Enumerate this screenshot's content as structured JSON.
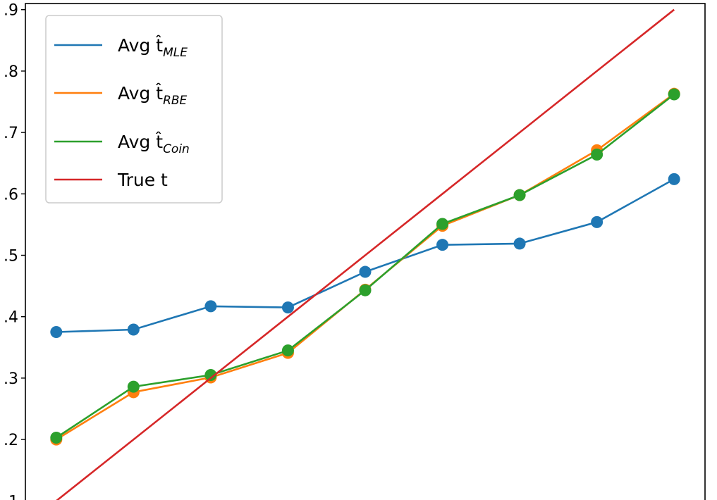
{
  "chart_data": {
    "type": "line",
    "title": "",
    "xlabel": "",
    "ylabel": "",
    "ylim": [
      0.09,
      0.91
    ],
    "yticks": [
      0.1,
      0.2,
      0.3,
      0.4,
      0.5,
      0.6,
      0.7,
      0.8,
      0.9
    ],
    "ytick_labels": [
      ".1",
      ".2",
      ".3",
      ".4",
      ".5",
      ".6",
      ".7",
      ".8",
      ".9"
    ],
    "x": [
      0.1,
      0.2,
      0.3,
      0.4,
      0.5,
      0.6,
      0.7,
      0.8,
      0.9
    ],
    "xlim": [
      0.06,
      0.94
    ],
    "grid": false,
    "legend_position": "top-left",
    "series": [
      {
        "name": "Avg t̂",
        "subscript": "MLE",
        "color": "#1f77b4",
        "markers": true,
        "values": [
          0.375,
          0.379,
          0.417,
          0.415,
          0.473,
          0.517,
          0.519,
          0.554,
          0.624
        ]
      },
      {
        "name": "Avg t̂",
        "subscript": "RBE",
        "color": "#ff7f0e",
        "markers": true,
        "values": [
          0.2,
          0.277,
          0.301,
          0.341,
          0.444,
          0.548,
          0.598,
          0.671,
          0.763
        ]
      },
      {
        "name": "Avg t̂",
        "subscript": "Coin",
        "color": "#2ca02c",
        "markers": true,
        "values": [
          0.203,
          0.286,
          0.305,
          0.345,
          0.443,
          0.551,
          0.598,
          0.664,
          0.762
        ]
      },
      {
        "name": "True t",
        "subscript": "",
        "color": "#d62728",
        "markers": false,
        "values": [
          0.1,
          0.2,
          0.3,
          0.4,
          0.5,
          0.6,
          0.7,
          0.8,
          0.9
        ]
      }
    ]
  }
}
